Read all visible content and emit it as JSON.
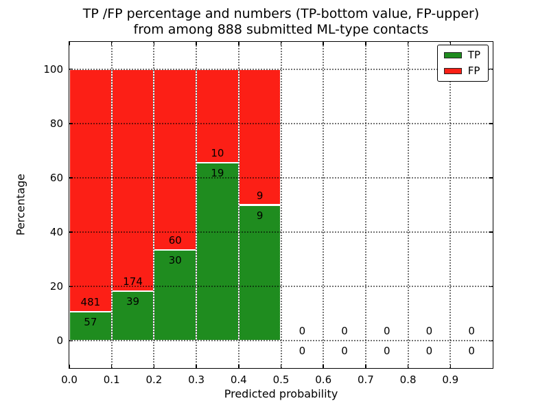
{
  "title": {
    "line1": "TP /FP percentage and numbers (TP-bottom value, FP-upper)",
    "line2": "from among 888 submitted ML-type contacts"
  },
  "axes": {
    "xlabel": "Predicted probability",
    "ylabel": "Percentage"
  },
  "legend": {
    "position": "upper right",
    "entries": [
      {
        "label": "TP",
        "color": "#1f8c1f"
      },
      {
        "label": "FP",
        "color": "#fc1f16"
      }
    ]
  },
  "chart_data": {
    "type": "bar",
    "subtype": "stacked-percentage-histogram",
    "title": "TP /FP percentage and numbers (TP-bottom value, FP-upper) from among 888 submitted ML-type contacts",
    "xlabel": "Predicted probability",
    "ylabel": "Percentage",
    "xlim": [
      0.0,
      1.0
    ],
    "ylim": [
      -10,
      110
    ],
    "xticks": [
      "0.0",
      "0.1",
      "0.2",
      "0.3",
      "0.4",
      "0.5",
      "0.6",
      "0.7",
      "0.8",
      "0.9"
    ],
    "yticks": [
      0,
      20,
      40,
      60,
      80,
      100
    ],
    "grid": true,
    "legend_position": "upper right",
    "bin_width": 0.1,
    "bin_starts": [
      0.0,
      0.1,
      0.2,
      0.3,
      0.4,
      0.5,
      0.6,
      0.7,
      0.8,
      0.9
    ],
    "series": [
      {
        "name": "TP",
        "color": "#1f8c1f",
        "counts": [
          57,
          39,
          30,
          19,
          9,
          0,
          0,
          0,
          0,
          0
        ],
        "percent": [
          10.59,
          18.31,
          33.33,
          65.52,
          50.0,
          0,
          0,
          0,
          0,
          0
        ]
      },
      {
        "name": "FP",
        "color": "#fc1f16",
        "counts": [
          481,
          174,
          60,
          10,
          9,
          0,
          0,
          0,
          0,
          0
        ],
        "percent": [
          89.41,
          81.69,
          66.67,
          34.48,
          50.0,
          0,
          0,
          0,
          0,
          0
        ]
      }
    ],
    "total_submitted": 888
  }
}
